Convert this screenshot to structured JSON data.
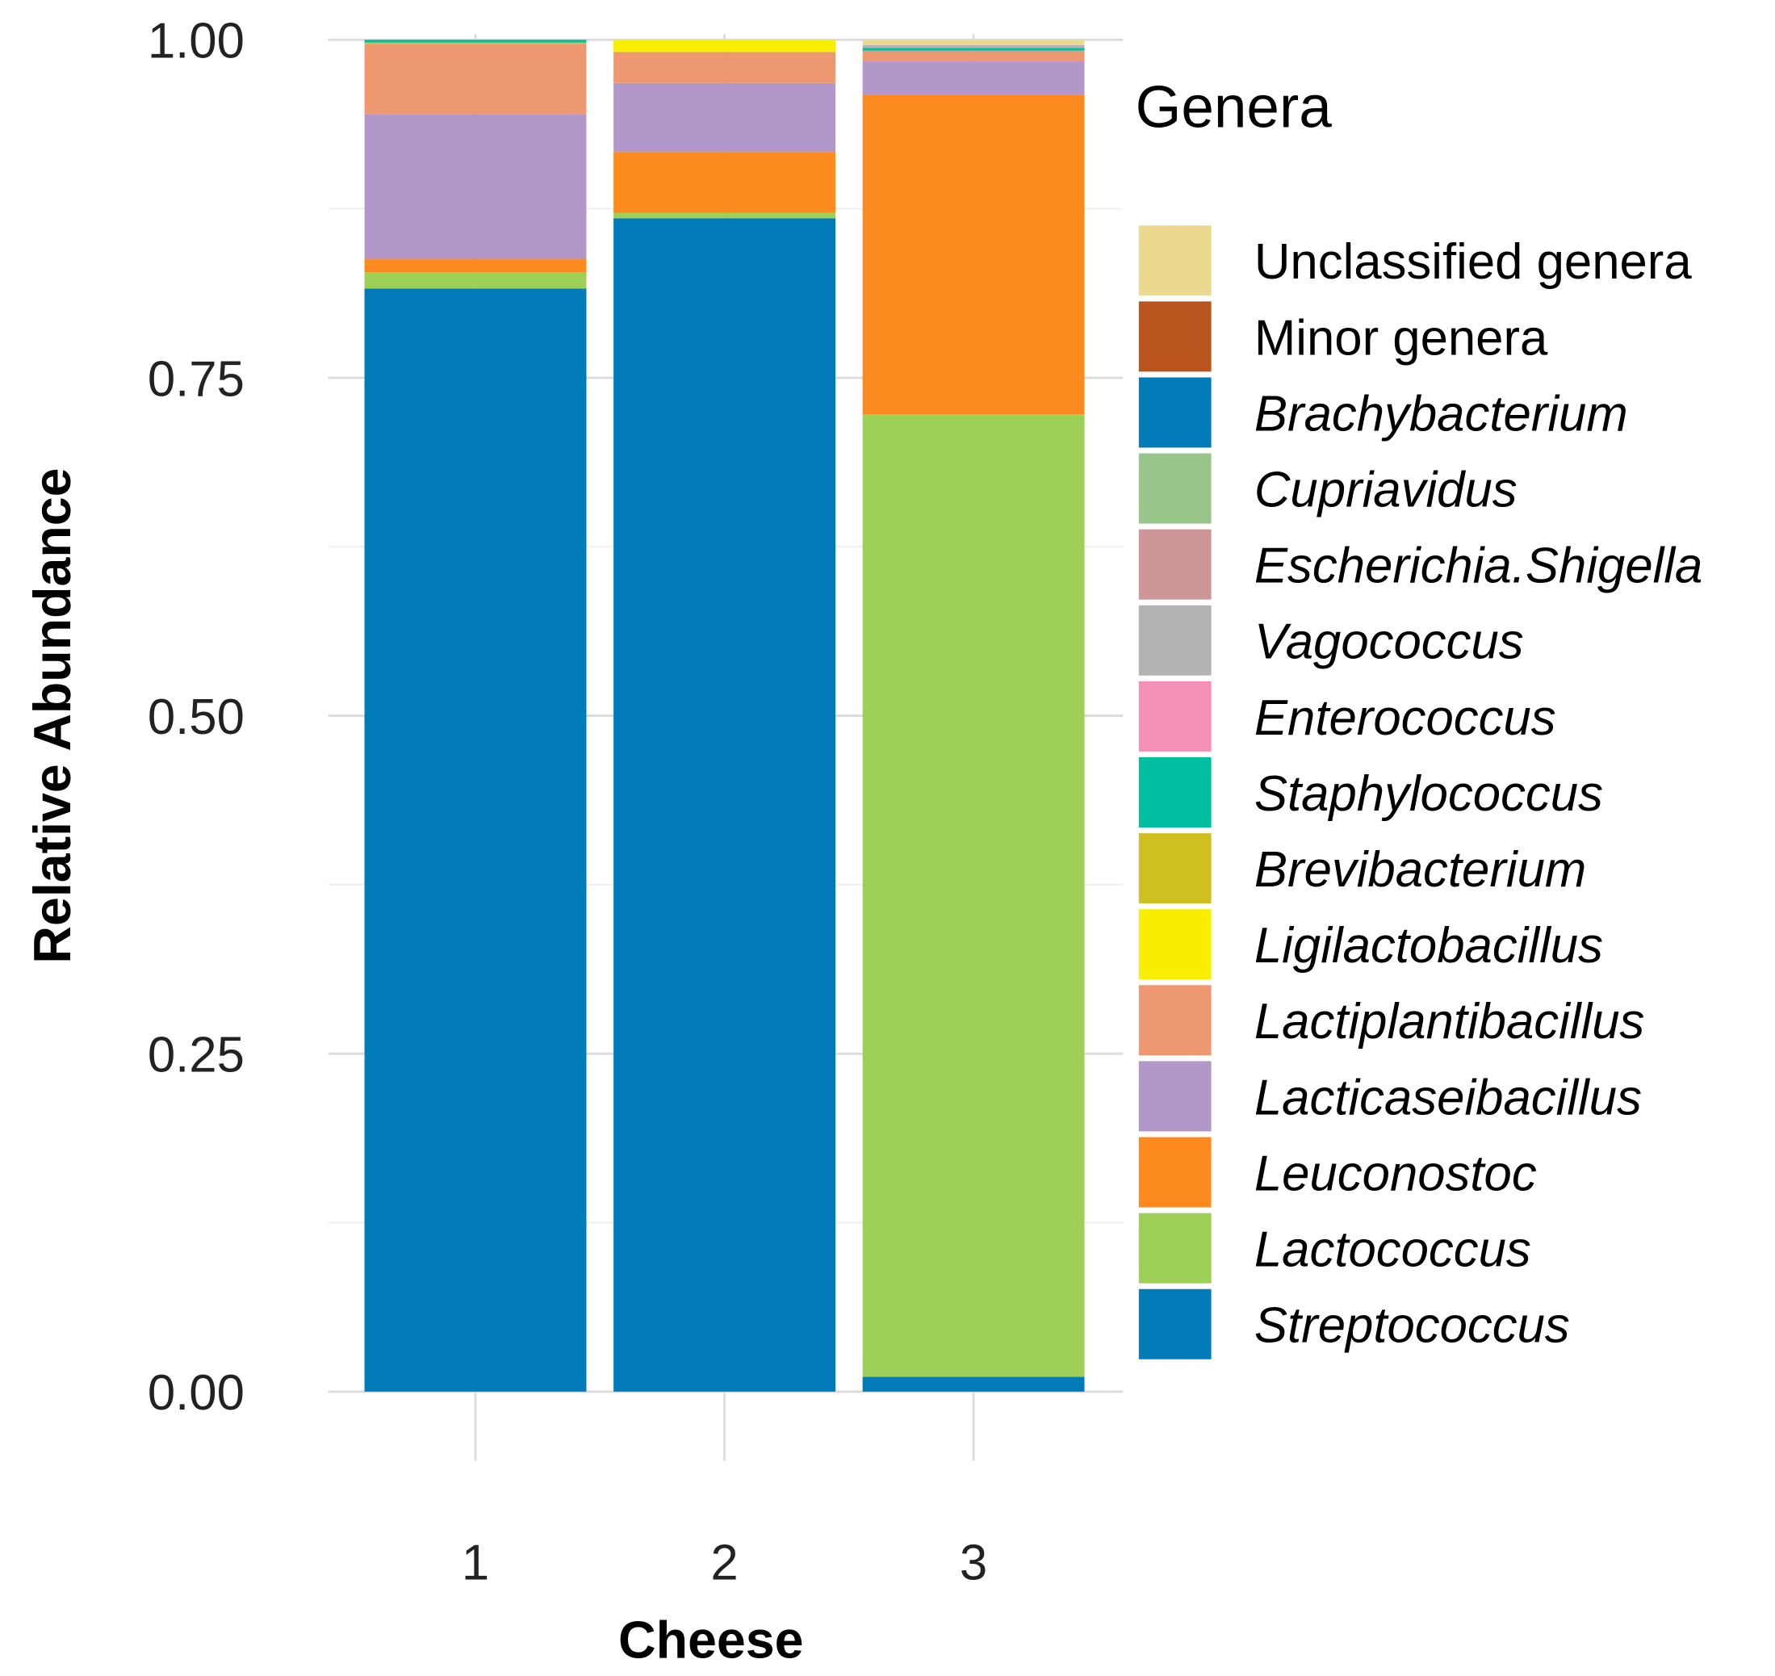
{
  "chart_data": {
    "type": "bar",
    "stacked": true,
    "xlabel": "Cheese",
    "ylabel": "Relative Abundance",
    "ylim": [
      0,
      1
    ],
    "yticks": [
      "0.00",
      "0.25",
      "0.50",
      "0.75",
      "1.00"
    ],
    "ytick_values": [
      0,
      0.25,
      0.5,
      0.75,
      1
    ],
    "categories": [
      "1",
      "2",
      "3"
    ],
    "grid": true,
    "legend": {
      "title": "Genera",
      "placement": "right"
    },
    "series": [
      {
        "name": "Streptococcus",
        "color": "#027BB9",
        "values": [
          0.816,
          0.868,
          0.011
        ]
      },
      {
        "name": "Lactococcus",
        "color": "#9ECF56",
        "values": [
          0.012,
          0.004,
          0.712
        ]
      },
      {
        "name": "Leuconostoc",
        "color": "#FD8A1F",
        "values": [
          0.01,
          0.045,
          0.236
        ]
      },
      {
        "name": "Lacticaseibacillus",
        "color": "#B297CA",
        "values": [
          0.107,
          0.051,
          0.025
        ]
      },
      {
        "name": "Lactiplantibacillus",
        "color": "#ED9870",
        "values": [
          0.052,
          0.023,
          0.008
        ]
      },
      {
        "name": "Ligilactobacillus",
        "color": "#F7EE00",
        "values": [
          0.0,
          0.009,
          0.0
        ]
      },
      {
        "name": "Brevibacterium",
        "color": "#CFC021",
        "values": [
          0.001,
          0.0,
          0.0
        ]
      },
      {
        "name": "Staphylococcus",
        "color": "#00BFA0",
        "values": [
          0.002,
          0.0,
          0.002
        ]
      },
      {
        "name": "Enterococcus",
        "color": "#F48FB8",
        "values": [
          0.0,
          0.0,
          0.0
        ]
      },
      {
        "name": "Vagococcus",
        "color": "#B3B3B3",
        "values": [
          0.0,
          0.0,
          0.002
        ]
      },
      {
        "name": "Escherichia.Shigella",
        "color": "#CE9599",
        "values": [
          0.0,
          0.0,
          0.0
        ]
      },
      {
        "name": "Cupriavidus",
        "color": "#98C58A",
        "values": [
          0.0,
          0.0,
          0.0
        ]
      },
      {
        "name": "Brachybacterium",
        "color": "#027BB9",
        "values": [
          0.0,
          0.0,
          0.0
        ]
      },
      {
        "name": "Minor genera",
        "color": "#B9541F",
        "values": [
          0.0,
          0.0,
          0.0
        ]
      },
      {
        "name": "Unclassified genera",
        "color": "#EBD98F",
        "values": [
          0.0,
          0.0,
          0.004
        ]
      }
    ],
    "legend_order": [
      "Unclassified genera",
      "Minor genera",
      "Brachybacterium",
      "Cupriavidus",
      "Escherichia.Shigella",
      "Vagococcus",
      "Enterococcus",
      "Staphylococcus",
      "Brevibacterium",
      "Ligilactobacillus",
      "Lactiplantibacillus",
      "Lacticaseibacillus",
      "Leuconostoc",
      "Lactococcus",
      "Streptococcus"
    ],
    "legend_non_italic": [
      "Unclassified genera",
      "Minor genera"
    ]
  }
}
